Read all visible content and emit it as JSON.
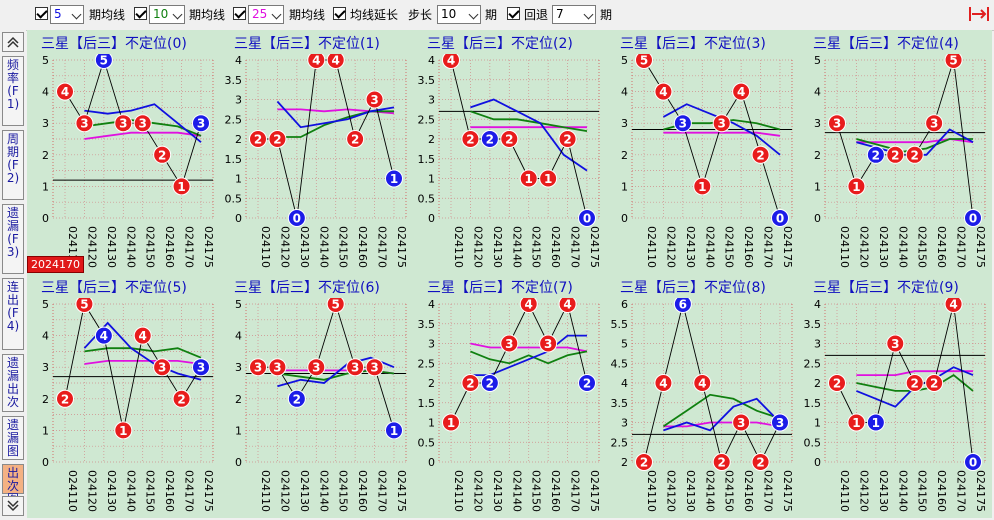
{
  "toolbar": {
    "ma1": {
      "value": "5",
      "label": "期均线",
      "color": "#1010e0"
    },
    "ma2": {
      "value": "10",
      "label": "期均线",
      "color": "#108010"
    },
    "ma3": {
      "value": "25",
      "label": "期均线",
      "color": "#e010e0"
    },
    "ext": {
      "label": "均线延长"
    },
    "step": {
      "label": "步长",
      "value": "10",
      "unit": "期"
    },
    "back": {
      "label": "回退",
      "value": "7",
      "unit": "期"
    }
  },
  "sidebar": {
    "items": [
      {
        "label": "频率(F1)"
      },
      {
        "label": "周期(F2)"
      },
      {
        "label": "遗漏(F3)"
      },
      {
        "label": "连出(F4)"
      },
      {
        "label": "遗漏出次"
      },
      {
        "label": "遗漏图"
      },
      {
        "label": "出次图"
      }
    ]
  },
  "highlight_label": "2024170",
  "colors": {
    "red": "#e81c1c",
    "blue": "#1c1ce8",
    "ma5": "#1010e0",
    "ma10": "#108010",
    "ma25": "#e010e0",
    "black": "#000000"
  },
  "chart_data": [
    {
      "type": "line",
      "title": "三星【后三】不定位(0)",
      "ylim": [
        0,
        5
      ],
      "yticks": [
        "0",
        "0.5",
        "1",
        "1.5",
        "2",
        "2.5",
        "3",
        "3.5",
        "4",
        "4.5",
        "5"
      ],
      "x": [
        "024110",
        "024120",
        "024130",
        "024140",
        "024150",
        "024160",
        "024170",
        "024175"
      ],
      "values": [
        4,
        3,
        5,
        3,
        3,
        2,
        1,
        3
      ],
      "blue_points": [
        2,
        7
      ],
      "hline": 1.2,
      "ma5": [
        3.4,
        3.3,
        3.4,
        3.6,
        3.0,
        2.4
      ],
      "ma10": [
        2.9,
        3.0,
        3.1,
        3.0,
        2.9,
        2.6
      ],
      "ma25": [
        2.5,
        2.6,
        2.7,
        2.7,
        2.7,
        2.6
      ]
    },
    {
      "type": "line",
      "title": "三星【后三】不定位(1)",
      "ylim": [
        0,
        4
      ],
      "yticks": [
        "0",
        "0.5",
        "1",
        "1.5",
        "2",
        "2.5",
        "3",
        "3.5",
        "4"
      ],
      "x": [
        "024110",
        "024120",
        "024130",
        "024140",
        "024150",
        "024160",
        "024170",
        "024175"
      ],
      "values": [
        2,
        2,
        0,
        4,
        4,
        2,
        3,
        1
      ],
      "blue_points": [
        2,
        7
      ],
      "hline": null,
      "ma5": [
        2.95,
        2.3,
        2.4,
        2.5,
        2.7,
        2.8
      ],
      "ma10": [
        2.05,
        2.05,
        2.35,
        2.55,
        2.7,
        2.7
      ],
      "ma25": [
        2.75,
        2.75,
        2.7,
        2.75,
        2.7,
        2.65
      ]
    },
    {
      "type": "line",
      "title": "三星【后三】不定位(2)",
      "ylim": [
        0,
        4
      ],
      "yticks": [
        "0",
        "0.5",
        "1",
        "1.5",
        "2",
        "2.5",
        "3",
        "3.5",
        "4"
      ],
      "x": [
        "024110",
        "024120",
        "024130",
        "024140",
        "024150",
        "024160",
        "024170",
        "024175"
      ],
      "values": [
        4,
        2,
        2,
        2,
        1,
        1,
        2,
        0
      ],
      "blue_points": [
        2,
        7
      ],
      "hline": 2.7,
      "ma5": [
        2.8,
        3.0,
        2.7,
        2.4,
        1.6,
        1.2
      ],
      "ma10": [
        2.7,
        2.5,
        2.5,
        2.4,
        2.3,
        2.2
      ],
      "ma25": [
        2.3,
        2.3,
        2.3,
        2.3,
        2.3,
        2.3
      ]
    },
    {
      "type": "line",
      "title": "三星【后三】不定位(3)",
      "ylim": [
        0,
        5
      ],
      "yticks": [
        "0",
        "0.5",
        "1",
        "1.5",
        "2",
        "2.5",
        "3",
        "3.5",
        "4",
        "4.5",
        "5"
      ],
      "x": [
        "024110",
        "024120",
        "024130",
        "024140",
        "024150",
        "024160",
        "024170",
        "024175"
      ],
      "values": [
        5,
        4,
        3,
        1,
        3,
        4,
        2,
        0
      ],
      "blue_points": [
        2,
        7
      ],
      "hline": 2.8,
      "ma5": [
        3.2,
        3.6,
        3.3,
        3.0,
        2.6,
        2.0
      ],
      "ma10": [
        2.8,
        3.0,
        3.0,
        3.1,
        3.0,
        2.8
      ],
      "ma25": [
        2.7,
        2.7,
        2.7,
        2.7,
        2.7,
        2.6
      ]
    },
    {
      "type": "line",
      "title": "三星【后三】不定位(4)",
      "ylim": [
        0,
        5
      ],
      "yticks": [
        "0",
        "0.5",
        "1",
        "1.5",
        "2",
        "2.5",
        "3",
        "3.5",
        "4",
        "4.5",
        "5"
      ],
      "x": [
        "024110",
        "024120",
        "024130",
        "024140",
        "024150",
        "024160",
        "024170",
        "024175"
      ],
      "values": [
        3,
        1,
        2,
        2,
        2,
        3,
        5,
        0
      ],
      "blue_points": [
        2,
        7
      ],
      "hline": 2.7,
      "ma5": [
        2.4,
        2.2,
        2.0,
        2.0,
        2.8,
        2.4
      ],
      "ma10": [
        2.5,
        2.3,
        2.1,
        2.2,
        2.5,
        2.5
      ],
      "ma25": [
        2.4,
        2.4,
        2.4,
        2.4,
        2.5,
        2.4
      ]
    },
    {
      "type": "line",
      "title": "三星【后三】不定位(5)",
      "ylim": [
        0,
        5
      ],
      "yticks": [
        "0",
        "0.5",
        "1",
        "1.5",
        "2",
        "2.5",
        "3",
        "3.5",
        "4",
        "4.5",
        "5"
      ],
      "x": [
        "024110",
        "024120",
        "024130",
        "024140",
        "024150",
        "024160",
        "024170",
        "024175"
      ],
      "values": [
        2,
        5,
        4,
        1,
        4,
        3,
        2,
        3
      ],
      "blue_points": [
        2,
        7
      ],
      "hline": 2.7,
      "ma5": [
        3.6,
        4.4,
        3.6,
        3.1,
        2.8,
        2.6
      ],
      "ma10": [
        3.5,
        3.6,
        3.6,
        3.5,
        3.6,
        3.3
      ],
      "ma25": [
        3.1,
        3.2,
        3.2,
        3.2,
        3.2,
        3.1
      ]
    },
    {
      "type": "line",
      "title": "三星【后三】不定位(6)",
      "ylim": [
        0,
        5
      ],
      "yticks": [
        "0",
        "0.5",
        "1",
        "1.5",
        "2",
        "2.5",
        "3",
        "3.5",
        "4",
        "4.5",
        "5"
      ],
      "x": [
        "024110",
        "024120",
        "024130",
        "024140",
        "024150",
        "024160",
        "024170",
        "024175"
      ],
      "values": [
        3,
        3,
        2,
        3,
        5,
        3,
        3,
        1
      ],
      "blue_points": [
        2,
        7
      ],
      "hline": 2.8,
      "ma5": [
        2.4,
        2.6,
        2.5,
        3.1,
        3.3,
        3.0
      ],
      "ma10": [
        2.8,
        2.7,
        2.6,
        2.8,
        2.9,
        2.8
      ],
      "ma25": [
        2.9,
        2.9,
        2.9,
        2.9,
        2.9,
        2.8
      ]
    },
    {
      "type": "line",
      "title": "三星【后三】不定位(7)",
      "ylim": [
        0,
        4
      ],
      "yticks": [
        "0",
        "0.5",
        "1",
        "1.5",
        "2",
        "2.5",
        "3",
        "3.5",
        "4"
      ],
      "x": [
        "024110",
        "024120",
        "024130",
        "024140",
        "024150",
        "024160",
        "024170",
        "024175"
      ],
      "values": [
        1,
        2,
        2,
        3,
        4,
        3,
        4,
        2
      ],
      "blue_points": [
        2,
        7
      ],
      "hline": null,
      "ma5": [
        2.2,
        2.2,
        2.4,
        2.6,
        2.8,
        3.2,
        3.2
      ],
      "ma10": [
        2.8,
        2.6,
        2.5,
        2.7,
        2.5,
        2.7,
        2.8
      ],
      "ma25": [
        3.0,
        2.9,
        2.9,
        2.9,
        2.9,
        2.9,
        2.8
      ]
    },
    {
      "type": "line",
      "title": "三星【后三】不定位(8)",
      "ylim": [
        2,
        6
      ],
      "yticks": [
        "2",
        "2.5",
        "3",
        "3.5",
        "4",
        "4.5",
        "5",
        "5.5",
        "6"
      ],
      "x": [
        "024110",
        "024120",
        "024130",
        "024140",
        "024150",
        "024160",
        "024170",
        "024175"
      ],
      "values": [
        2,
        4,
        6,
        4,
        2,
        3,
        2,
        3
      ],
      "blue_points": [
        2,
        7
      ],
      "hline": 2.7,
      "ma5": [
        2.8,
        3.0,
        2.8,
        3.4,
        3.6,
        3.0
      ],
      "ma10": [
        2.9,
        3.3,
        3.7,
        3.6,
        3.3,
        3.1
      ],
      "ma25": [
        2.9,
        2.9,
        3.0,
        3.0,
        3.0,
        2.9
      ]
    },
    {
      "type": "line",
      "title": "三星【后三】不定位(9)",
      "ylim": [
        0,
        4
      ],
      "yticks": [
        "0",
        "0.5",
        "1",
        "1.5",
        "2",
        "2.5",
        "3",
        "3.5",
        "4"
      ],
      "x": [
        "024110",
        "024120",
        "024130",
        "024140",
        "024150",
        "024160",
        "024170",
        "024175"
      ],
      "values": [
        2,
        1,
        1,
        3,
        2,
        2,
        4,
        0
      ],
      "blue_points": [
        2,
        7
      ],
      "hline": 2.7,
      "ma5": [
        1.8,
        1.6,
        1.4,
        1.9,
        2.1,
        2.4,
        2.2
      ],
      "ma10": [
        2.0,
        1.9,
        1.8,
        1.8,
        1.9,
        2.2,
        1.8
      ],
      "ma25": [
        2.2,
        2.2,
        2.2,
        2.3,
        2.3,
        2.3,
        2.3
      ]
    }
  ]
}
